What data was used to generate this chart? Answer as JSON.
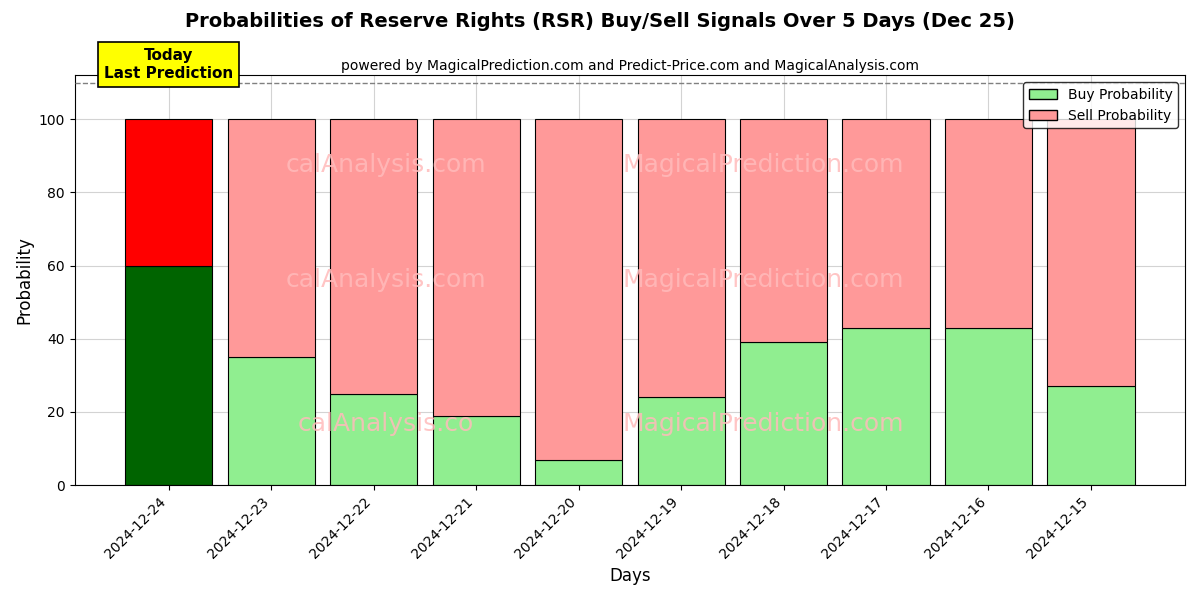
{
  "title": "Probabilities of Reserve Rights (RSR) Buy/Sell Signals Over 5 Days (Dec 25)",
  "subtitle": "powered by MagicalPrediction.com and Predict-Price.com and MagicalAnalysis.com",
  "xlabel": "Days",
  "ylabel": "Probability",
  "categories": [
    "2024-12-24",
    "2024-12-23",
    "2024-12-22",
    "2024-12-21",
    "2024-12-20",
    "2024-12-19",
    "2024-12-18",
    "2024-12-17",
    "2024-12-16",
    "2024-12-15"
  ],
  "buy_values": [
    60,
    35,
    25,
    19,
    7,
    24,
    39,
    43,
    43,
    27
  ],
  "sell_values": [
    40,
    65,
    75,
    81,
    93,
    76,
    61,
    57,
    57,
    73
  ],
  "today_index": 0,
  "buy_color_today": "#006400",
  "sell_color_today": "#ff0000",
  "buy_color_normal": "#90ee90",
  "sell_color_normal": "#ff9999",
  "today_label_bg": "#ffff00",
  "today_label_text": "Today\nLast Prediction",
  "ylim": [
    0,
    112
  ],
  "yticks": [
    0,
    20,
    40,
    60,
    80,
    100
  ],
  "dashed_line_y": 110,
  "watermark_color": "#ffbbbb",
  "watermark_alpha": 0.85,
  "legend_buy_label": "Buy Probability",
  "legend_sell_label": "Sell Probability",
  "bar_edge_color": "#000000",
  "bar_linewidth": 0.8,
  "bar_width": 0.85,
  "figsize": [
    12,
    6
  ],
  "dpi": 100
}
